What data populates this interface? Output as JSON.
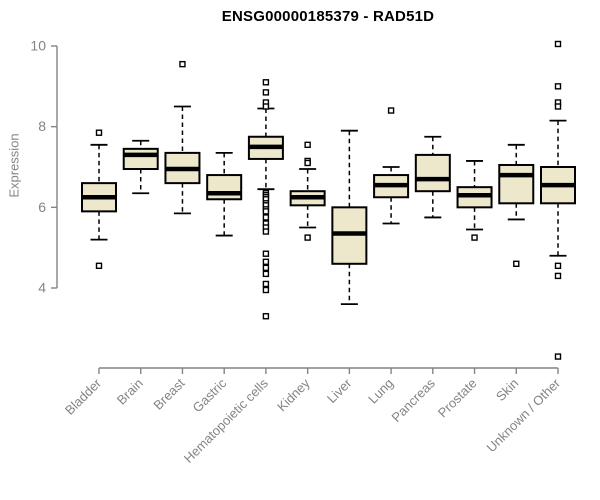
{
  "title": "ENSG00000185379 - RAD51D",
  "ylabel": "Expression",
  "chart_data": {
    "type": "boxplot",
    "title": "ENSG00000185379 - RAD51D",
    "xlabel": "",
    "ylabel": "Expression",
    "ylim": [
      4,
      10
    ],
    "yticks": [
      4,
      6,
      8,
      10
    ],
    "grid": false,
    "legend": "none",
    "x_label_rotation": 45,
    "colors": {
      "box_fill": "#EDE7CC",
      "box_stroke": "#000000",
      "median": "#000000",
      "whisker": "#000000",
      "axis": "#848484",
      "tick_label": "#848484",
      "title": "#000000"
    },
    "categories": [
      "Bladder",
      "Brain",
      "Breast",
      "Gastric",
      "Hematopoietic cells",
      "Kidney",
      "Liver",
      "Lung",
      "Pancreas",
      "Prostate",
      "Skin",
      "Unknown / Other"
    ],
    "boxes": [
      {
        "category": "Bladder",
        "whisker_low": 5.2,
        "q1": 5.9,
        "median": 6.25,
        "q3": 6.6,
        "whisker_high": 7.55,
        "outliers": [
          7.85,
          4.55
        ]
      },
      {
        "category": "Brain",
        "whisker_low": 6.35,
        "q1": 6.95,
        "median": 7.3,
        "q3": 7.45,
        "whisker_high": 7.65,
        "outliers": []
      },
      {
        "category": "Breast",
        "whisker_low": 5.85,
        "q1": 6.6,
        "median": 6.95,
        "q3": 7.35,
        "whisker_high": 8.5,
        "outliers": [
          9.55
        ]
      },
      {
        "category": "Gastric",
        "whisker_low": 5.3,
        "q1": 6.2,
        "median": 6.35,
        "q3": 6.8,
        "whisker_high": 7.35,
        "outliers": []
      },
      {
        "category": "Hematopoietic cells",
        "whisker_low": 6.45,
        "q1": 7.2,
        "median": 7.5,
        "q3": 7.75,
        "whisker_high": 8.45,
        "outliers": [
          9.1,
          8.85,
          8.6,
          8.5,
          6.35,
          6.3,
          6.25,
          6.2,
          6.1,
          6.05,
          5.95,
          5.9,
          5.75,
          5.6,
          5.5,
          5.4,
          4.85,
          4.65,
          4.5,
          4.35,
          4.1,
          3.95,
          3.3
        ]
      },
      {
        "category": "Kidney",
        "whisker_low": 5.5,
        "q1": 6.05,
        "median": 6.25,
        "q3": 6.4,
        "whisker_high": 6.95,
        "outliers": [
          7.55,
          7.15,
          7.1,
          5.25
        ]
      },
      {
        "category": "Liver",
        "whisker_low": 3.6,
        "q1": 4.6,
        "median": 5.35,
        "q3": 6.0,
        "whisker_high": 7.9,
        "outliers": []
      },
      {
        "category": "Lung",
        "whisker_low": 5.6,
        "q1": 6.25,
        "median": 6.55,
        "q3": 6.8,
        "whisker_high": 7.0,
        "outliers": [
          8.4
        ]
      },
      {
        "category": "Pancreas",
        "whisker_low": 5.75,
        "q1": 6.4,
        "median": 6.7,
        "q3": 7.3,
        "whisker_high": 7.75,
        "outliers": []
      },
      {
        "category": "Prostate",
        "whisker_low": 5.45,
        "q1": 6.0,
        "median": 6.3,
        "q3": 6.5,
        "whisker_high": 7.15,
        "outliers": [
          5.25
        ]
      },
      {
        "category": "Skin",
        "whisker_low": 5.7,
        "q1": 6.1,
        "median": 6.8,
        "q3": 7.05,
        "whisker_high": 7.55,
        "outliers": [
          4.6
        ]
      },
      {
        "category": "Unknown / Other",
        "whisker_low": 4.8,
        "q1": 6.1,
        "median": 6.55,
        "q3": 7.0,
        "whisker_high": 8.15,
        "outliers": [
          10.05,
          9.0,
          8.6,
          8.5,
          4.55,
          4.3,
          2.3
        ]
      }
    ]
  }
}
